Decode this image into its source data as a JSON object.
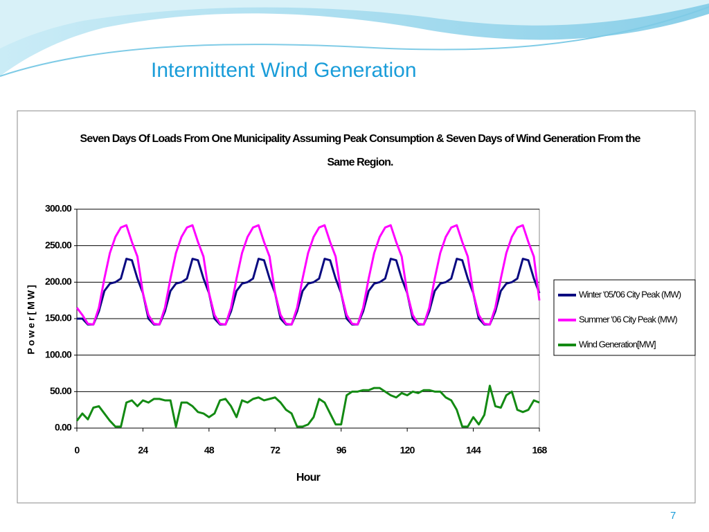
{
  "slide_title": "Intermittent Wind Generation",
  "page_number": "7",
  "chart_data": {
    "type": "line",
    "title": "Seven Days Of Loads From One Municipality Assuming Peak Consumption & Seven Days of Wind Generation From the Same Region.",
    "xlabel": "Hour",
    "ylabel": "Power[MW]",
    "x": [
      0,
      2,
      4,
      6,
      8,
      10,
      12,
      14,
      16,
      18,
      20,
      22,
      24,
      26,
      28,
      30,
      32,
      34,
      36,
      38,
      40,
      42,
      44,
      46,
      48,
      50,
      52,
      54,
      56,
      58,
      60,
      62,
      64,
      66,
      68,
      70,
      72,
      74,
      76,
      78,
      80,
      82,
      84,
      86,
      88,
      90,
      92,
      94,
      96,
      98,
      100,
      102,
      104,
      106,
      108,
      110,
      112,
      114,
      116,
      118,
      120,
      122,
      124,
      126,
      128,
      130,
      132,
      134,
      136,
      138,
      140,
      142,
      144,
      146,
      148,
      150,
      152,
      154,
      156,
      158,
      160,
      162,
      164,
      166,
      168
    ],
    "series": [
      {
        "name": "Winter '05/'06 City Peak (MW)",
        "color": "#0a0a80",
        "values": [
          150,
          150,
          142,
          142,
          160,
          188,
          198,
          200,
          205,
          232,
          230,
          205,
          185,
          150,
          142,
          142,
          160,
          188,
          198,
          200,
          205,
          232,
          230,
          205,
          185,
          150,
          142,
          142,
          160,
          188,
          198,
          200,
          205,
          232,
          230,
          205,
          185,
          150,
          142,
          142,
          160,
          188,
          198,
          200,
          205,
          232,
          230,
          205,
          185,
          150,
          142,
          142,
          160,
          188,
          198,
          200,
          205,
          232,
          230,
          205,
          185,
          150,
          142,
          142,
          160,
          188,
          198,
          200,
          205,
          232,
          230,
          205,
          185,
          150,
          142,
          142,
          160,
          188,
          198,
          200,
          205,
          232,
          230,
          205,
          185
        ]
      },
      {
        "name": "Summer '06 City Peak (MW)",
        "color": "#ff00ff",
        "values": [
          165,
          155,
          143,
          142,
          165,
          205,
          240,
          262,
          275,
          278,
          255,
          235,
          185,
          155,
          143,
          142,
          165,
          205,
          240,
          262,
          275,
          278,
          255,
          235,
          185,
          155,
          143,
          142,
          165,
          205,
          240,
          262,
          275,
          278,
          255,
          235,
          185,
          155,
          143,
          142,
          165,
          205,
          240,
          262,
          275,
          278,
          255,
          235,
          185,
          155,
          143,
          142,
          165,
          205,
          240,
          262,
          275,
          278,
          255,
          235,
          185,
          155,
          143,
          142,
          165,
          205,
          240,
          262,
          275,
          278,
          255,
          235,
          185,
          155,
          143,
          142,
          165,
          205,
          240,
          262,
          275,
          278,
          255,
          235,
          175
        ]
      },
      {
        "name": "Wind Generation[MW]",
        "color": "#138a13",
        "values": [
          10,
          20,
          12,
          28,
          30,
          20,
          10,
          2,
          2,
          35,
          38,
          30,
          38,
          35,
          40,
          40,
          38,
          38,
          2,
          35,
          35,
          30,
          22,
          20,
          15,
          20,
          38,
          40,
          30,
          15,
          38,
          35,
          40,
          42,
          38,
          40,
          42,
          35,
          25,
          20,
          2,
          2,
          5,
          15,
          40,
          35,
          20,
          5,
          5,
          45,
          50,
          50,
          52,
          52,
          55,
          55,
          50,
          45,
          42,
          48,
          45,
          50,
          48,
          52,
          52,
          50,
          50,
          42,
          38,
          25,
          2,
          2,
          15,
          5,
          18,
          58,
          30,
          28,
          45,
          50,
          25,
          22,
          25,
          38,
          35
        ]
      }
    ],
    "xlim": [
      0,
      168
    ],
    "xticks": [
      0,
      24,
      48,
      72,
      96,
      120,
      144,
      168
    ],
    "ylim": [
      0,
      300
    ],
    "yticks": [
      {
        "value": 0,
        "label": "0.00"
      },
      {
        "value": 50,
        "label": "50.00"
      },
      {
        "value": 100,
        "label": "100.00"
      },
      {
        "value": 150,
        "label": "150.00"
      },
      {
        "value": 200,
        "label": "200.00"
      },
      {
        "value": 250,
        "label": "250.00"
      },
      {
        "value": 300,
        "label": "300.00"
      }
    ],
    "grid": true,
    "legend": "right"
  }
}
